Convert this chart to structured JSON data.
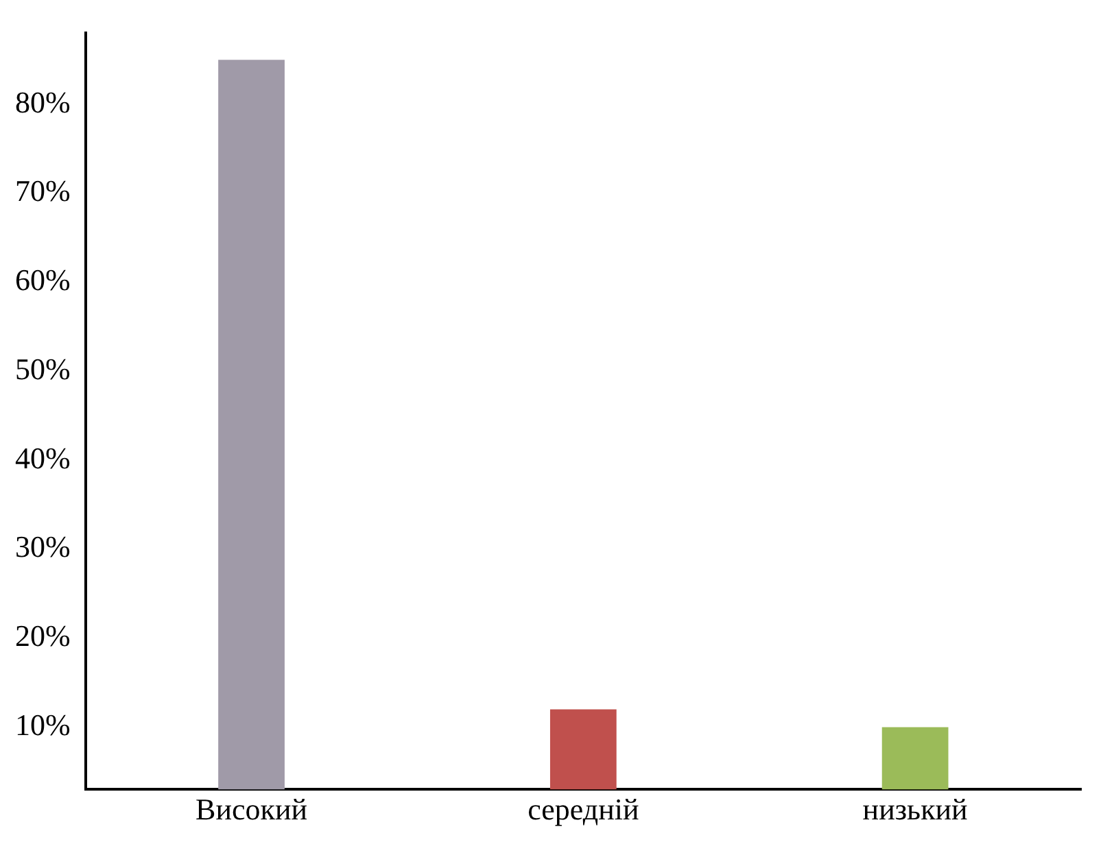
{
  "chart_data": {
    "type": "bar",
    "categories": [
      "Високий",
      "середній",
      "низький"
    ],
    "values": [
      85,
      12,
      10
    ],
    "colors": [
      "#a09aa8",
      "#c0504d",
      "#9bbb59"
    ],
    "ylim": [
      3,
      88
    ],
    "yticks": [
      {
        "value": 10,
        "label": "10%"
      },
      {
        "value": 20,
        "label": "20%"
      },
      {
        "value": 30,
        "label": "30%"
      },
      {
        "value": 40,
        "label": "40%"
      },
      {
        "value": 50,
        "label": "50%"
      },
      {
        "value": 60,
        "label": "60%"
      },
      {
        "value": 70,
        "label": "70%"
      },
      {
        "value": 80,
        "label": "80%"
      }
    ],
    "grid": false,
    "legend": false
  }
}
